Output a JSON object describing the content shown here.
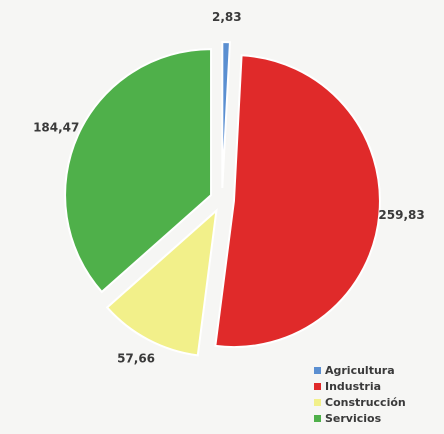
{
  "chart_data": {
    "type": "pie",
    "categories": [
      "Agricultura",
      "Industria",
      "Construcción",
      "Servicios"
    ],
    "values": [
      2.83,
      259.83,
      57.66,
      184.47
    ],
    "value_labels": [
      "2,83",
      "259,83",
      "57,66",
      "184,47"
    ],
    "colors": [
      "#5b8fd1",
      "#e02a2a",
      "#f2f08a",
      "#4fb04a"
    ],
    "exploded": true,
    "legend_position": "bottom-right"
  }
}
